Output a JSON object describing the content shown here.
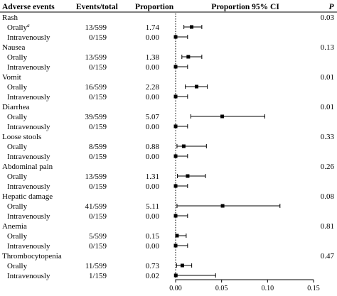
{
  "chart_data": {
    "type": "forest",
    "headers": {
      "event": "Adverse events",
      "events_total": "Events/total",
      "proportion": "Proportion",
      "ci": "Proportion 95% CI",
      "p": "P"
    },
    "x_ticks": [
      "0.00",
      "0.05",
      "0.10",
      "0.15"
    ],
    "x_tick_values": [
      0,
      0.05,
      0.1,
      0.15
    ],
    "xlim": [
      0,
      0.15
    ],
    "reference_line": 0,
    "events": [
      {
        "name": "Rash",
        "p": "0.03",
        "rows": [
          {
            "route": "Orally",
            "sup": "a",
            "events_total": "13/599",
            "proportion_text": "1.74",
            "est": 0.0174,
            "lo": 0.009,
            "hi": 0.0285
          },
          {
            "route": "Intravenously",
            "events_total": "0/159",
            "proportion_text": "0.00",
            "est": 0.0,
            "lo": 0.0,
            "hi": 0.013
          }
        ]
      },
      {
        "name": "Nausea",
        "p": "0.13",
        "rows": [
          {
            "route": "Orally",
            "events_total": "13/599",
            "proportion_text": "1.38",
            "est": 0.0138,
            "lo": 0.0068,
            "hi": 0.0285
          },
          {
            "route": "Intravenously",
            "events_total": "0/159",
            "proportion_text": "0.00",
            "est": 0.0,
            "lo": 0.0,
            "hi": 0.013
          }
        ]
      },
      {
        "name": "Vomit",
        "p": "0.01",
        "rows": [
          {
            "route": "Orally",
            "events_total": "16/599",
            "proportion_text": "2.28",
            "est": 0.0228,
            "lo": 0.0105,
            "hi": 0.0345
          },
          {
            "route": "Intravenously",
            "events_total": "0/159",
            "proportion_text": "0.00",
            "est": 0.0,
            "lo": 0.0,
            "hi": 0.013
          }
        ]
      },
      {
        "name": "Diarrhea",
        "p": "0.01",
        "rows": [
          {
            "route": "Orally",
            "events_total": "39/599",
            "proportion_text": "5.07",
            "est": 0.0507,
            "lo": 0.0165,
            "hi": 0.097
          },
          {
            "route": "Intravenously",
            "events_total": "0/159",
            "proportion_text": "0.00",
            "est": 0.0,
            "lo": 0.0,
            "hi": 0.013
          }
        ]
      },
      {
        "name": "Loose stools",
        "p": "0.33",
        "rows": [
          {
            "route": "Orally",
            "events_total": "8/599",
            "proportion_text": "0.88",
            "est": 0.0088,
            "lo": 0.0015,
            "hi": 0.0335
          },
          {
            "route": "Intravenously",
            "events_total": "0/159",
            "proportion_text": "0.00",
            "est": 0.0,
            "lo": 0.0,
            "hi": 0.013
          }
        ]
      },
      {
        "name": "Abdominal pain",
        "p": "0.26",
        "rows": [
          {
            "route": "Orally",
            "events_total": "13/599",
            "proportion_text": "1.31",
            "est": 0.0131,
            "lo": 0.002,
            "hi": 0.0325
          },
          {
            "route": "Intravenously",
            "events_total": "0/159",
            "proportion_text": "0.00",
            "est": 0.0,
            "lo": 0.0,
            "hi": 0.013
          }
        ]
      },
      {
        "name": "Hepatic damage",
        "p": "0.08",
        "rows": [
          {
            "route": "Orally",
            "events_total": "41/599",
            "proportion_text": "5.11",
            "est": 0.0511,
            "lo": 0.0015,
            "hi": 0.1135
          },
          {
            "route": "Intravenously",
            "events_total": "0/159",
            "proportion_text": "0.00",
            "est": 0.0,
            "lo": 0.0,
            "hi": 0.013
          }
        ]
      },
      {
        "name": "Anemia",
        "p": "0.81",
        "rows": [
          {
            "route": "Orally",
            "events_total": "5/599",
            "proportion_text": "0.15",
            "est": 0.0015,
            "lo": 0.0,
            "hi": 0.0115
          },
          {
            "route": "Intravenously",
            "events_total": "0/159",
            "proportion_text": "0.00",
            "est": 0.0,
            "lo": 0.0,
            "hi": 0.013
          }
        ]
      },
      {
        "name": "Thrombocytopenia",
        "p": "0.47",
        "rows": [
          {
            "route": "Orally",
            "events_total": "11/599",
            "proportion_text": "0.73",
            "est": 0.0073,
            "lo": 0.001,
            "hi": 0.0175
          },
          {
            "route": "Intravenously",
            "events_total": "1/159",
            "proportion_text": "0.02",
            "est": 0.0002,
            "lo": 0.0,
            "hi": 0.0435
          }
        ]
      }
    ]
  }
}
